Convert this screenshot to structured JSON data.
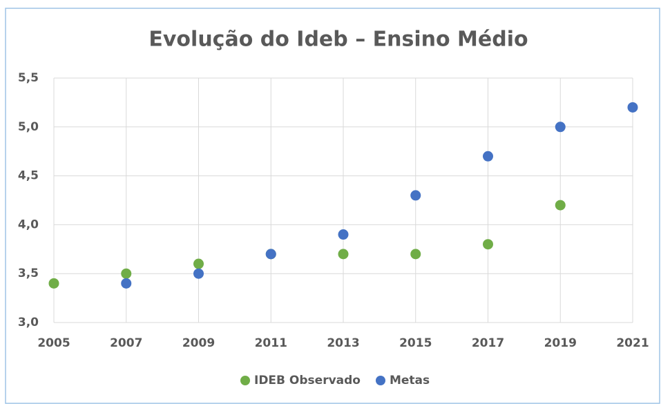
{
  "chart_data": {
    "type": "scatter",
    "title": "Evolução do Ideb – Ensino Médio",
    "x": [
      2005,
      2007,
      2009,
      2011,
      2013,
      2015,
      2017,
      2019,
      2021
    ],
    "series": [
      {
        "name": "IDEB Observado",
        "color": "#70ad47",
        "values": [
          3.4,
          3.5,
          3.6,
          3.7,
          3.7,
          3.7,
          3.8,
          4.2,
          null
        ]
      },
      {
        "name": "Metas",
        "color": "#4472c4",
        "values": [
          null,
          3.4,
          3.5,
          3.7,
          3.9,
          4.3,
          4.7,
          5.0,
          5.2
        ]
      }
    ],
    "xlim": [
      2005,
      2021
    ],
    "xticks": [
      2005,
      2007,
      2009,
      2011,
      2013,
      2015,
      2017,
      2019,
      2021
    ],
    "ylim": [
      3.0,
      5.5
    ],
    "yticks": [
      {
        "value": 3.0,
        "label": "3,0"
      },
      {
        "value": 3.5,
        "label": "3,5"
      },
      {
        "value": 4.0,
        "label": "4,0"
      },
      {
        "value": 4.5,
        "label": "4,5"
      },
      {
        "value": 5.0,
        "label": "5,0"
      },
      {
        "value": 5.5,
        "label": "5,5"
      }
    ],
    "grid": true,
    "legend": "bottom"
  }
}
